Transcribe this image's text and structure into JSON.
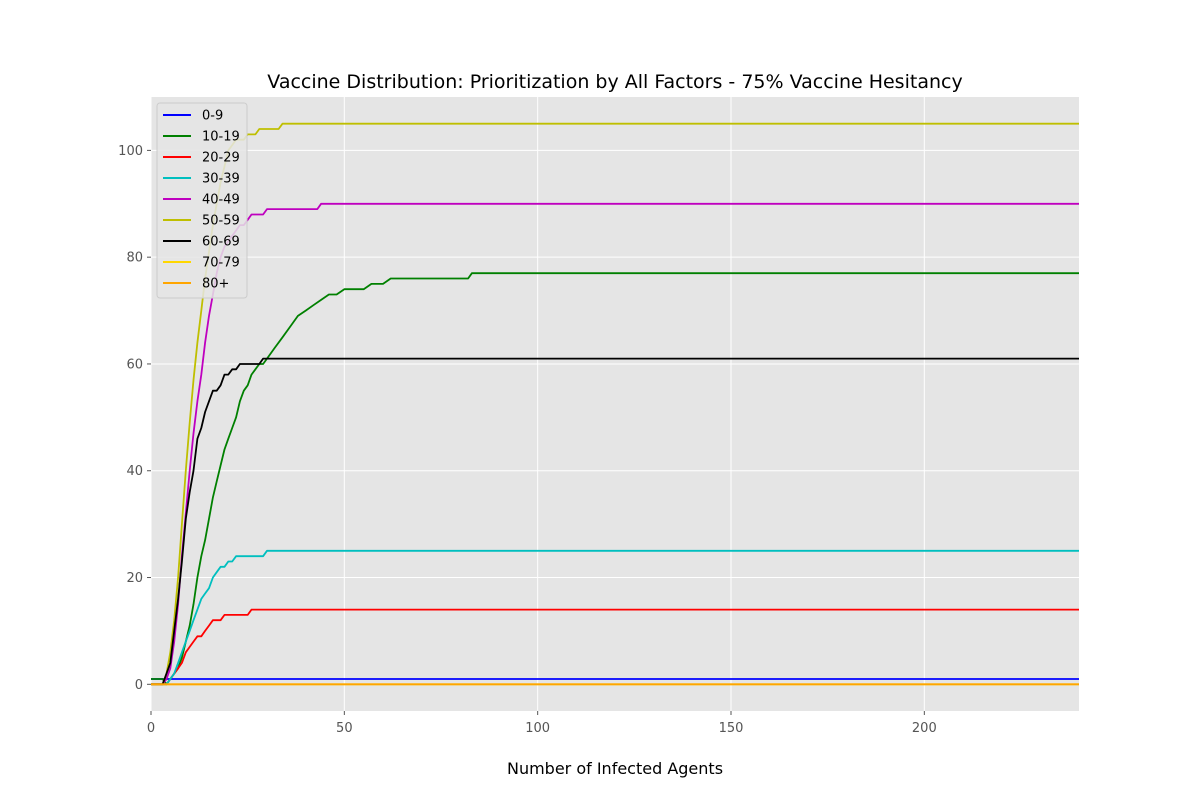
{
  "chart_data": {
    "type": "line",
    "title": "Vaccine Distribution: Prioritization by All Factors - 75% Vaccine Hesitancy",
    "xlabel": "Number of Infected Agents",
    "ylabel": "",
    "xlim": [
      0,
      240
    ],
    "ylim": [
      -5,
      110
    ],
    "xticks": [
      0,
      50,
      100,
      150,
      200
    ],
    "yticks": [
      0,
      20,
      40,
      60,
      80,
      100
    ],
    "grid": true,
    "legend_position": "upper-left",
    "series": [
      {
        "name": "0-9",
        "color": "#0000ff",
        "x": [
          0,
          240
        ],
        "y": [
          1,
          1
        ]
      },
      {
        "name": "10-19",
        "color": "#008000",
        "x": [
          0,
          3,
          4,
          5,
          6,
          7,
          8,
          9,
          10,
          11,
          12,
          13,
          14,
          15,
          16,
          17,
          18,
          19,
          20,
          21,
          22,
          23,
          24,
          25,
          26,
          27,
          28,
          29,
          30,
          32,
          34,
          36,
          38,
          40,
          42,
          44,
          46,
          48,
          50,
          53,
          55,
          57,
          60,
          62,
          65,
          70,
          75,
          80,
          82,
          83,
          90,
          100,
          150,
          200,
          240
        ],
        "y": [
          1,
          1,
          0,
          1,
          2,
          3,
          5,
          8,
          11,
          15,
          20,
          24,
          27,
          31,
          35,
          38,
          41,
          44,
          46,
          48,
          50,
          53,
          55,
          56,
          58,
          59,
          60,
          60,
          61,
          63,
          65,
          67,
          69,
          70,
          71,
          72,
          73,
          73,
          74,
          74,
          74,
          75,
          75,
          76,
          76,
          76,
          76,
          76,
          76,
          77,
          77,
          77,
          77,
          77,
          77
        ]
      },
      {
        "name": "20-29",
        "color": "#ff0000",
        "x": [
          0,
          3,
          4,
          5,
          6,
          7,
          8,
          9,
          10,
          11,
          12,
          13,
          14,
          15,
          16,
          17,
          18,
          19,
          20,
          21,
          22,
          23,
          24,
          25,
          26,
          30,
          50,
          100,
          150,
          200,
          240
        ],
        "y": [
          0,
          0,
          0,
          1,
          2,
          3,
          4,
          6,
          7,
          8,
          9,
          9,
          10,
          11,
          12,
          12,
          12,
          13,
          13,
          13,
          13,
          13,
          13,
          13,
          14,
          14,
          14,
          14,
          14,
          14,
          14
        ]
      },
      {
        "name": "30-39",
        "color": "#00bfbf",
        "x": [
          0,
          3,
          4,
          5,
          6,
          7,
          8,
          9,
          10,
          11,
          12,
          13,
          14,
          15,
          16,
          17,
          18,
          19,
          20,
          21,
          22,
          23,
          24,
          25,
          26,
          27,
          28,
          29,
          30,
          50,
          100,
          150,
          200,
          240
        ],
        "y": [
          0,
          0,
          0,
          1,
          2,
          4,
          6,
          8,
          10,
          12,
          14,
          16,
          17,
          18,
          20,
          21,
          22,
          22,
          23,
          23,
          24,
          24,
          24,
          24,
          24,
          24,
          24,
          24,
          25,
          25,
          25,
          25,
          25,
          25
        ]
      },
      {
        "name": "40-49",
        "color": "#bf00bf",
        "x": [
          0,
          3,
          4,
          5,
          6,
          7,
          8,
          9,
          10,
          11,
          12,
          13,
          14,
          15,
          16,
          17,
          18,
          19,
          20,
          21,
          22,
          23,
          24,
          25,
          26,
          27,
          28,
          29,
          30,
          35,
          40,
          42,
          43,
          44,
          50,
          100,
          150,
          200,
          240
        ],
        "y": [
          0,
          0,
          1,
          3,
          8,
          15,
          24,
          32,
          40,
          47,
          53,
          58,
          64,
          69,
          73,
          77,
          80,
          82,
          83,
          84,
          85,
          86,
          86,
          87,
          88,
          88,
          88,
          88,
          89,
          89,
          89,
          89,
          89,
          90,
          90,
          90,
          90,
          90,
          90
        ]
      },
      {
        "name": "50-59",
        "color": "#bfbf00",
        "x": [
          0,
          3,
          4,
          5,
          6,
          7,
          8,
          9,
          10,
          11,
          12,
          13,
          14,
          15,
          16,
          17,
          18,
          19,
          20,
          21,
          22,
          23,
          24,
          25,
          26,
          27,
          28,
          29,
          30,
          32,
          33,
          34,
          40,
          50,
          100,
          150,
          200,
          240
        ],
        "y": [
          0,
          0,
          2,
          6,
          12,
          20,
          30,
          40,
          49,
          57,
          64,
          70,
          76,
          81,
          86,
          90,
          94,
          97,
          100,
          101,
          102,
          102,
          102,
          103,
          103,
          103,
          104,
          104,
          104,
          104,
          104,
          105,
          105,
          105,
          105,
          105,
          105,
          105
        ]
      },
      {
        "name": "60-69",
        "color": "#000000",
        "x": [
          0,
          3,
          4,
          5,
          6,
          7,
          8,
          9,
          10,
          11,
          12,
          13,
          14,
          15,
          16,
          17,
          18,
          19,
          20,
          21,
          22,
          23,
          24,
          25,
          26,
          27,
          28,
          29,
          30,
          50,
          100,
          150,
          200,
          240
        ],
        "y": [
          0,
          0,
          2,
          4,
          10,
          16,
          23,
          31,
          36,
          40,
          46,
          48,
          51,
          53,
          55,
          55,
          56,
          58,
          58,
          59,
          59,
          60,
          60,
          60,
          60,
          60,
          60,
          61,
          61,
          61,
          61,
          61,
          61,
          61
        ]
      },
      {
        "name": "70-79",
        "color": "#ffd700",
        "x": [
          0,
          240
        ],
        "y": [
          0,
          0
        ]
      },
      {
        "name": "80+",
        "color": "#ffa500",
        "x": [
          0,
          240
        ],
        "y": [
          0,
          0
        ]
      }
    ]
  }
}
